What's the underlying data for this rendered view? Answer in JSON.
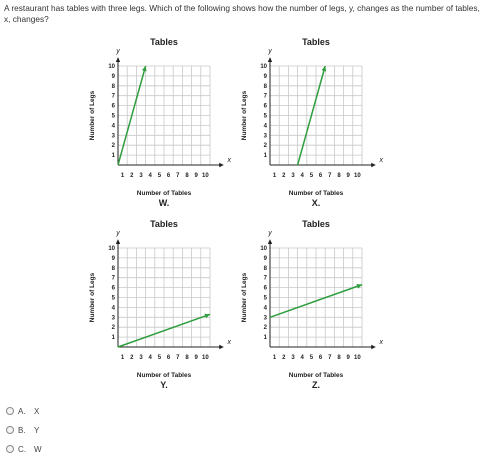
{
  "question": "A restaurant has tables with three legs. Which of the following shows how the number of legs, y, changes as the number of tables, x, changes?",
  "graphs": [
    {
      "id": "W",
      "title": "Tables",
      "ylabel": "Number of Legs",
      "xlabel": "Number of Tables",
      "caption": "W.",
      "y_axis": "y",
      "x_axis": "x",
      "line": {
        "from": [
          0,
          0
        ],
        "to": [
          3,
          10
        ]
      }
    },
    {
      "id": "X",
      "title": "Tables",
      "ylabel": "Number of Legs",
      "xlabel": "Number of Tables",
      "caption": "X.",
      "y_axis": "y",
      "x_axis": "x",
      "line": {
        "from": [
          3,
          0
        ],
        "to": [
          6,
          10
        ]
      }
    },
    {
      "id": "Y",
      "title": "Tables",
      "ylabel": "Number of Legs",
      "xlabel": "Number of Tables",
      "caption": "Y.",
      "y_axis": "y",
      "x_axis": "x",
      "line": {
        "from": [
          0,
          0
        ],
        "to": [
          10,
          3.3
        ]
      }
    },
    {
      "id": "Z",
      "title": "Tables",
      "ylabel": "Number of Legs",
      "xlabel": "Number of Tables",
      "caption": "Z.",
      "y_axis": "y",
      "x_axis": "x",
      "line": {
        "from": [
          0,
          3
        ],
        "to": [
          10,
          6.3
        ]
      }
    }
  ],
  "axis": {
    "x_ticks": [
      "1",
      "2",
      "3",
      "4",
      "5",
      "6",
      "7",
      "8",
      "9",
      "10"
    ],
    "y_ticks": [
      "1",
      "2",
      "3",
      "4",
      "5",
      "6",
      "7",
      "8",
      "9",
      "10"
    ],
    "xlim": [
      0,
      10
    ],
    "ylim": [
      0,
      10
    ]
  },
  "colors": {
    "line": "#2e9e3e",
    "grid": "#c8c8c8",
    "axis": "#222222"
  },
  "choices": [
    {
      "letter": "A.",
      "text": "X"
    },
    {
      "letter": "B.",
      "text": "Y"
    },
    {
      "letter": "C.",
      "text": "W"
    }
  ]
}
